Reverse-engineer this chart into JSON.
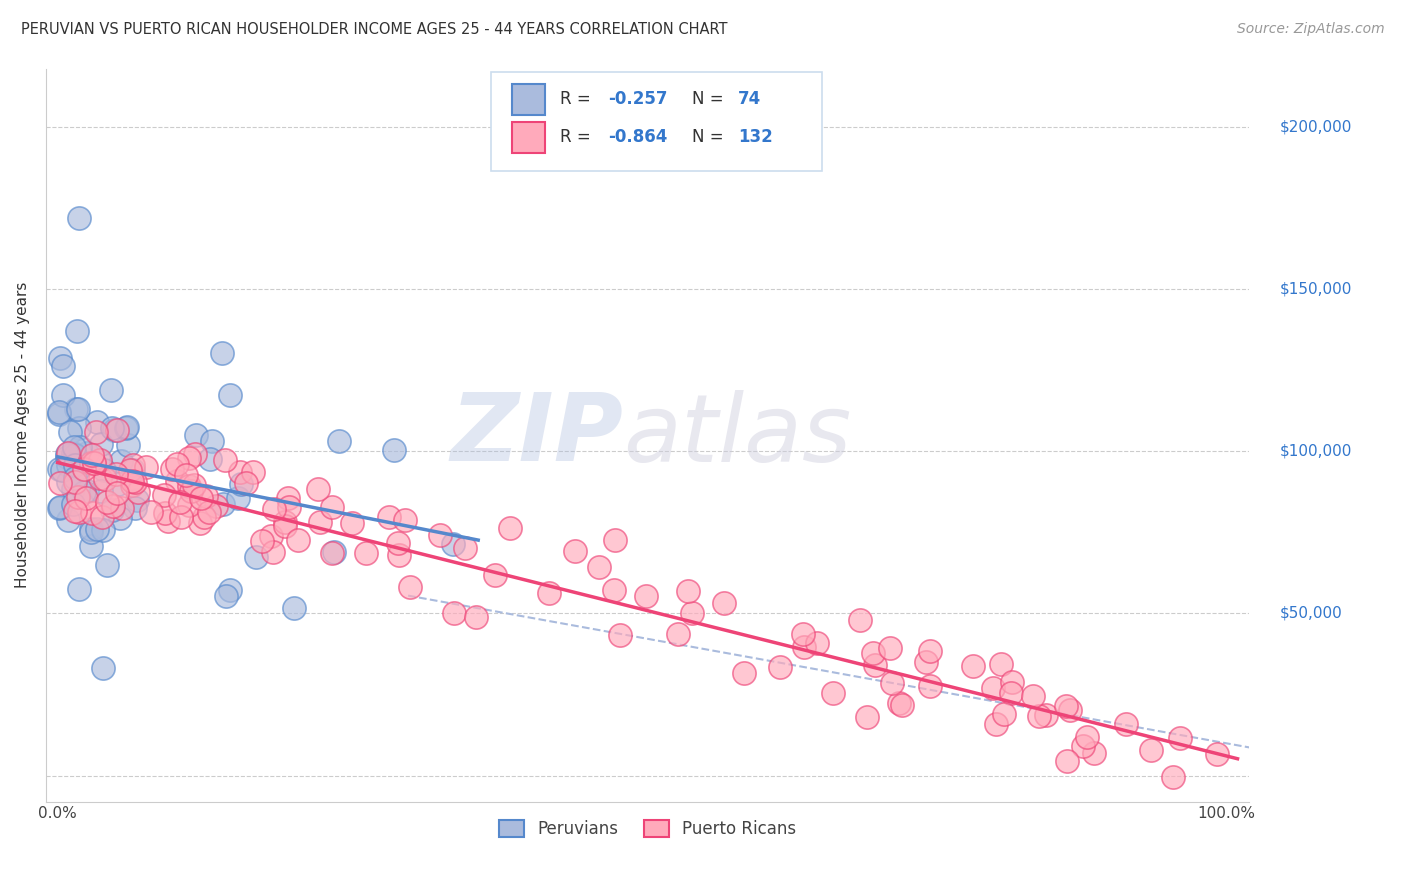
{
  "title": "PERUVIAN VS PUERTO RICAN HOUSEHOLDER INCOME AGES 25 - 44 YEARS CORRELATION CHART",
  "source_text": "Source: ZipAtlas.com",
  "ylabel": "Householder Income Ages 25 - 44 years",
  "xlim": [
    -0.01,
    1.02
  ],
  "ylim": [
    -8000,
    218000
  ],
  "background_color": "#FFFFFF",
  "grid_color": "#CCCCCC",
  "peruvian_color": "#5588CC",
  "peruvian_face_color": "#AABBDD",
  "puerto_rican_color": "#EE4477",
  "puerto_rican_face_color": "#FFAABB",
  "peruvian_R": -0.257,
  "peruvian_N": 74,
  "puerto_rican_R": -0.864,
  "puerto_rican_N": 132,
  "legend_label_1": "Peruvians",
  "legend_label_2": "Puerto Ricans",
  "watermark_zip_color": "#AABBDD",
  "watermark_atlas_color": "#CCCCDD",
  "ytick_color": "#3377CC"
}
